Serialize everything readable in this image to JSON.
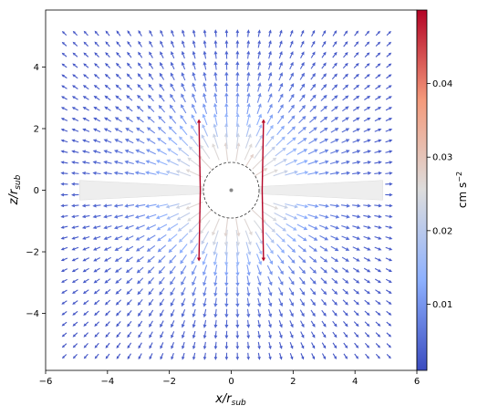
{
  "chart_data": {
    "type": "quiver",
    "xlabel": "x/r_sub",
    "ylabel": "z/r_sub",
    "xlim": [
      -6,
      6
    ],
    "ylim": [
      -5.85,
      5.85
    ],
    "x_ticks": [
      "−6",
      "−4",
      "−2",
      "0",
      "2",
      "4",
      "6"
    ],
    "x_tick_values": [
      -6,
      -4,
      -2,
      0,
      2,
      4,
      6
    ],
    "y_ticks": [
      "−4",
      "−2",
      "0",
      "2",
      "4"
    ],
    "y_tick_values": [
      -4,
      -2,
      0,
      2,
      4
    ],
    "grid": false,
    "colorbar": {
      "label": "cm s⁻²",
      "label_base": "cm s",
      "label_exp": "−2",
      "vmin": 0.001,
      "vmax": 0.05,
      "ticks": [
        "0.01",
        "0.02",
        "0.03",
        "0.04"
      ],
      "tick_values": [
        0.01,
        0.02,
        0.03,
        0.04
      ],
      "colormap": "coolwarm",
      "colors": [
        "#3b4cc0",
        "#8db0fe",
        "#dddddd",
        "#f49a7b",
        "#b40426"
      ]
    },
    "arrow_grid": {
      "x_range": [
        -5.4,
        5.4
      ],
      "x_step": 0.35,
      "z_range": [
        -5.4,
        5.4
      ],
      "z_step": 0.35,
      "field": "radial outward acceleration from the central source, strongest near x≈±1, z≈0"
    },
    "sublimation_sphere": {
      "center": [
        0,
        0
      ],
      "radius": 0.9,
      "style": "dashed"
    },
    "central_source": {
      "center": [
        0,
        0
      ],
      "color": "#888888"
    },
    "disk_region": {
      "x_inner": 0.9,
      "x_outer": 4.9,
      "half_height_inner": 0.12,
      "half_height_outer": 0.32,
      "color": "#eeeeee"
    },
    "strong_arrows": [
      {
        "x": -1.0,
        "z": 0,
        "dz": 2.3,
        "color": "#b40426"
      },
      {
        "x": -1.0,
        "z": 0,
        "dz": -2.3,
        "color": "#b40426"
      },
      {
        "x": 1.0,
        "z": 0,
        "dz": 2.3,
        "color": "#b40426"
      },
      {
        "x": 1.0,
        "z": 0,
        "dz": -2.3,
        "color": "#b40426"
      }
    ]
  }
}
